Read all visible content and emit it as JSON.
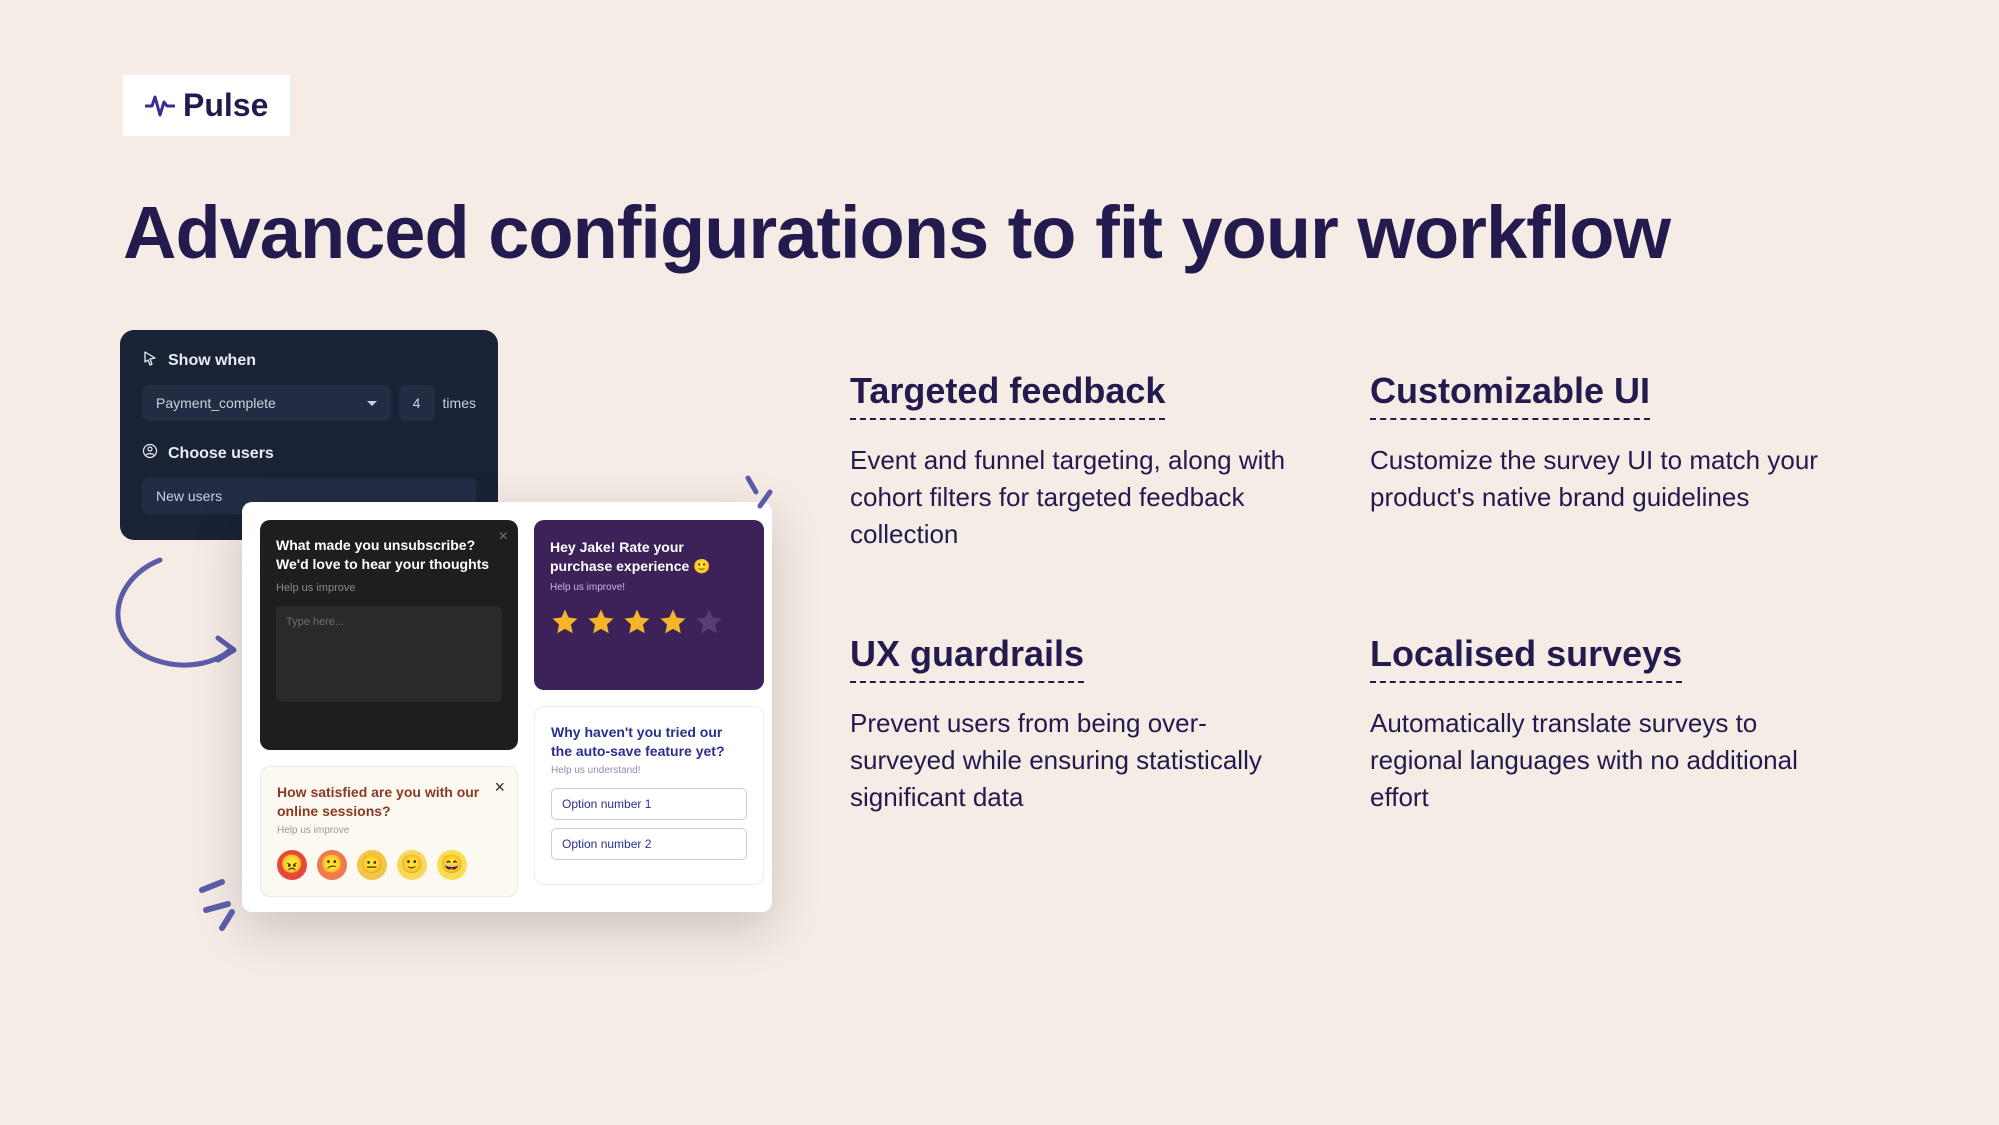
{
  "brand": {
    "name": "Pulse",
    "logo_color": "#3d2b8f",
    "text_color": "#231a4e"
  },
  "headline": "Advanced configurations to fit your workflow",
  "colors": {
    "page_bg": "#f6ece6",
    "headline": "#231a4e",
    "config_card_bg": "#1a2236",
    "config_pill_bg": "#222d44",
    "config_text": "#c9d1e0",
    "panel_bg": "#ffffff",
    "survey_dark_bg": "#1e1e1e",
    "survey_purple_bg": "#3d2159",
    "star_filled": "#f4b528",
    "star_empty": "#5a3c74",
    "options_title": "#2a2f8d",
    "options_border": "#c7cbe6",
    "emoji_card_bg": "#fcf8f2",
    "emoji_title": "#8a3a21",
    "deco_stroke": "#5a5ca8"
  },
  "config_card": {
    "section1_label": "Show when",
    "event_select": "Payment_complete",
    "count_value": "4",
    "count_suffix": "times",
    "section2_label": "Choose users",
    "users_select": "New users"
  },
  "surveys": {
    "unsubscribe": {
      "title": "What made you unsubscribe? We'd love to hear your thoughts",
      "subtitle": "Help us improve",
      "placeholder": "Type here..."
    },
    "rating": {
      "title": "Hey Jake! Rate your purchase experience 🙂",
      "subtitle": "Help us improve!",
      "stars_total": 5,
      "stars_filled": 4
    },
    "options": {
      "title": "Why haven't you tried our the auto-save feature yet?",
      "subtitle": "Help us understand!",
      "options": [
        "Option number 1",
        "Option number 2"
      ]
    },
    "emoji": {
      "title": "How satisfied are you with our online sessions?",
      "subtitle": "Help us improve",
      "faces": [
        {
          "bg": "#e8483a",
          "glyph": "😠"
        },
        {
          "bg": "#f07a4d",
          "glyph": "😕"
        },
        {
          "bg": "#f3c64a",
          "glyph": "😐"
        },
        {
          "bg": "#f5d95a",
          "glyph": "🙂"
        },
        {
          "bg": "#f6de4e",
          "glyph": "😄"
        }
      ]
    }
  },
  "features": [
    {
      "title": "Targeted feedback",
      "body": "Event and funnel targeting, along with cohort filters for targeted feedback collection"
    },
    {
      "title": "Customizable UI",
      "body": "Customize the survey UI to match your product's native brand guidelines"
    },
    {
      "title": "UX guardrails",
      "body": "Prevent users from being over-surveyed while ensuring statistically significant data"
    },
    {
      "title": "Localised surveys",
      "body": "Automatically translate surveys to regional languages with no additional effort"
    }
  ]
}
